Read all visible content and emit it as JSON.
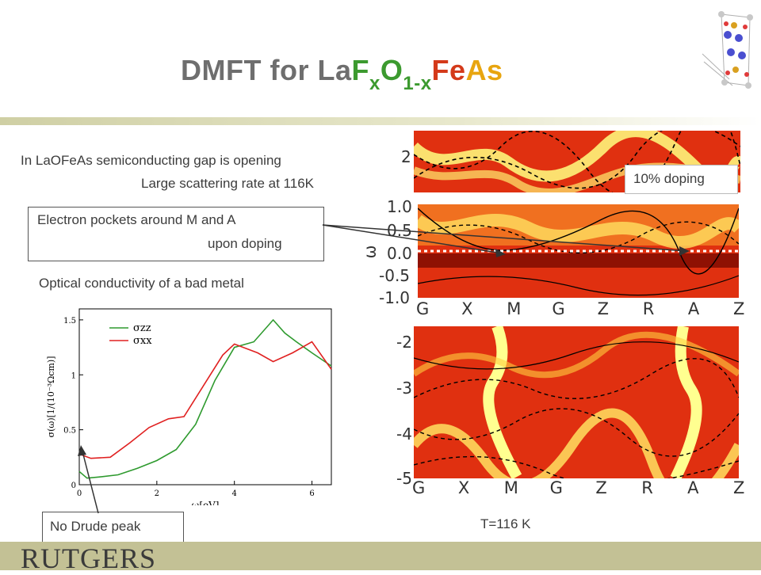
{
  "title": {
    "prefix": "DMFT for La",
    "f": "F",
    "x1": "x",
    "o": "O",
    "sub2": "1-x",
    "fe": "Fe",
    "as": "As"
  },
  "colors": {
    "title_gray": "#6e6e6e",
    "title_green": "#3c9a2f",
    "title_red": "#d43a1a",
    "title_orange": "#e8a50f",
    "bar": "#c3c195",
    "band": "#e03010"
  },
  "text": {
    "gap_line1": "In LaOFeAs semiconducting gap is opening",
    "gap_line2": "Large scattering rate at 116K",
    "pocket_line1": "Electron pockets around M and A",
    "pocket_line2": "upon doping",
    "optical": "Optical conductivity of a bad metal",
    "drude": "No Drude peak",
    "doping": "10% doping",
    "temperature": "T=116 K",
    "logo": "RUTGERS"
  },
  "band_labels": {
    "top_tick": "2",
    "mid_ticks": [
      "1.0",
      "0.5",
      "0.0",
      "-0.5",
      "-1.0"
    ],
    "omega": "ω",
    "bottom_ticks": [
      "-2",
      "-3",
      "-4",
      "-5"
    ],
    "kpoints": [
      "G",
      "X",
      "M",
      "G",
      "Z",
      "R",
      "A",
      "Z"
    ]
  },
  "chart_data": {
    "type": "line",
    "xlabel": "ω[eV]",
    "ylabel": "σ(ω)[1/(10⁻³Ωcm)]",
    "xlim": [
      0,
      6.5
    ],
    "ylim": [
      0,
      1.6
    ],
    "xticks": [
      "0",
      "2",
      "4",
      "6"
    ],
    "yticks": [
      "0",
      "0.5",
      "1",
      "1.5"
    ],
    "series": [
      {
        "name": "σzz",
        "color": "#2e9a2e",
        "x": [
          0,
          0.2,
          0.5,
          1,
          1.5,
          2,
          2.5,
          3,
          3.5,
          4,
          4.5,
          5,
          5.3,
          5.6,
          6,
          6.5
        ],
        "y": [
          0.12,
          0.06,
          0.07,
          0.09,
          0.15,
          0.22,
          0.32,
          0.55,
          0.95,
          1.25,
          1.3,
          1.5,
          1.38,
          1.3,
          1.2,
          1.08
        ]
      },
      {
        "name": "σxx",
        "color": "#e02020",
        "x": [
          0,
          0.3,
          0.8,
          1.3,
          1.8,
          2.3,
          2.7,
          3.2,
          3.7,
          4,
          4.6,
          5,
          5.5,
          6,
          6.5
        ],
        "y": [
          0.28,
          0.24,
          0.25,
          0.38,
          0.52,
          0.6,
          0.62,
          0.9,
          1.18,
          1.28,
          1.2,
          1.12,
          1.2,
          1.3,
          1.05
        ]
      }
    ],
    "legend": [
      "σzz",
      "σxx"
    ]
  }
}
